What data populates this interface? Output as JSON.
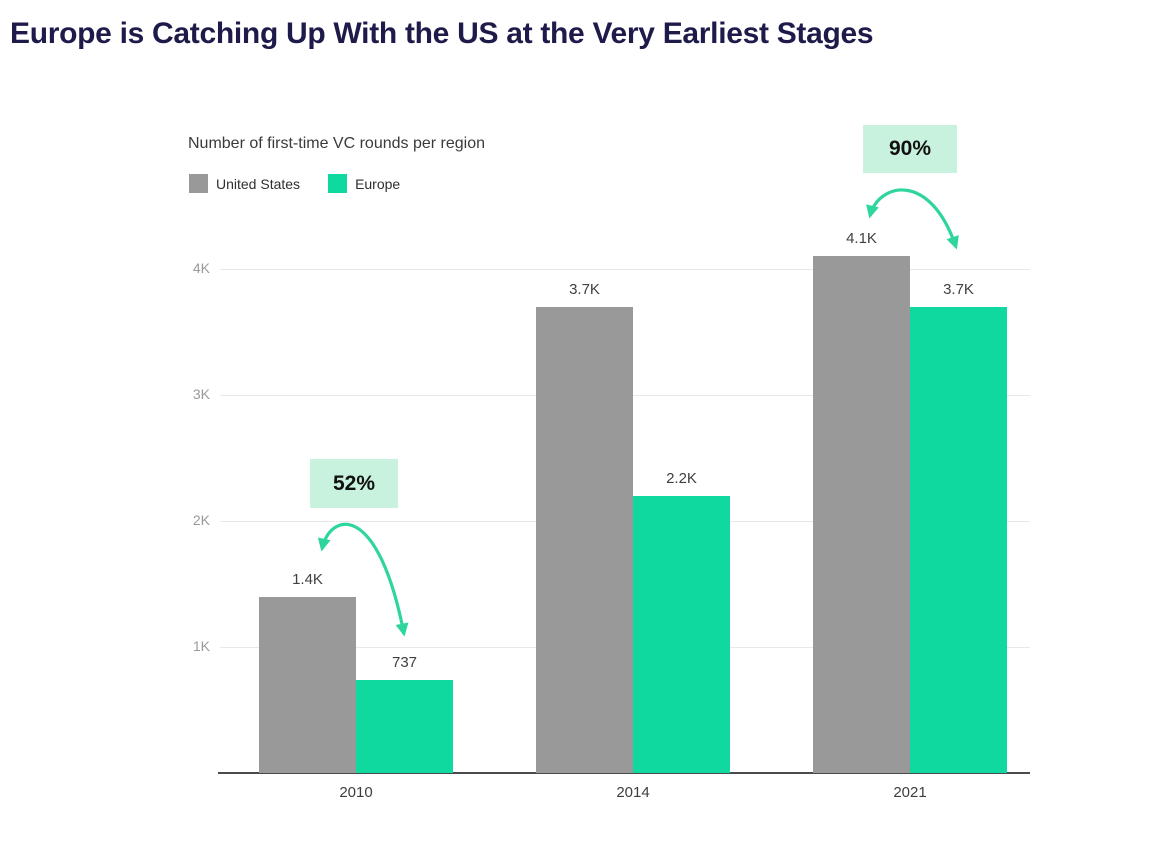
{
  "page": {
    "title": "Europe is Catching Up With the US at the Very Earliest Stages"
  },
  "chart_data": {
    "type": "bar",
    "title": "Number of first-time VC rounds per region",
    "categories": [
      "2010",
      "2014",
      "2021"
    ],
    "series": [
      {
        "name": "United States",
        "values": [
          1400,
          3700,
          4100
        ],
        "value_labels": [
          "1.4K",
          "3.7K",
          "4.1K"
        ],
        "color": "#999999"
      },
      {
        "name": "Europe",
        "values": [
          737,
          2200,
          3700
        ],
        "value_labels": [
          "737",
          "2.2K",
          "3.7K"
        ],
        "color": "#10d9a0"
      }
    ],
    "ylim": [
      0,
      4400
    ],
    "yticks": [
      {
        "value": 1000,
        "label": "1K"
      },
      {
        "value": 2000,
        "label": "2K"
      },
      {
        "value": 3000,
        "label": "3K"
      },
      {
        "value": 4000,
        "label": "4K"
      }
    ],
    "grid": "horizontal",
    "legend_position": "top-left",
    "annotations": [
      {
        "label": "52%",
        "category": "2010"
      },
      {
        "label": "90%",
        "category": "2021"
      }
    ],
    "colors": {
      "annotation_bg": "#c8f2de",
      "annotation_text": "#111111",
      "arrow": "#2ed69c",
      "grid_line": "#e8e8e8",
      "axis_line": "#4a4a4a",
      "tick_label": "#9a9a9a",
      "value_label": "#404040",
      "title_text": "#1e1b4b"
    }
  }
}
